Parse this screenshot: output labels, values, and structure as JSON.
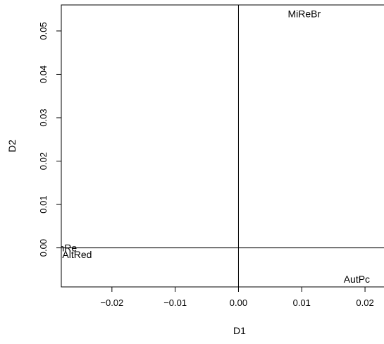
{
  "chart_data": {
    "type": "scatter",
    "xlabel": "D1",
    "ylabel": "D2",
    "xlim": [
      -0.028,
      0.023
    ],
    "ylim": [
      -0.009,
      0.056
    ],
    "xticks": [
      -0.02,
      -0.01,
      0.0,
      0.01,
      0.02
    ],
    "xtick_labels": [
      "−0.02",
      "−0.01",
      "0.00",
      "0.01",
      "0.02"
    ],
    "yticks": [
      0.0,
      0.01,
      0.02,
      0.03,
      0.04,
      0.05
    ],
    "ytick_labels": [
      "0.00",
      "0.01",
      "0.02",
      "0.03",
      "0.04",
      "0.05"
    ],
    "reference_lines": {
      "x": 0,
      "y": 0
    },
    "points": [
      {
        "label": "MiReBr",
        "x": 0.0104,
        "y": 0.054
      },
      {
        "label": "WhRe",
        "x": -0.0277,
        "y": 0.0
      },
      {
        "label": "AltRed",
        "x": -0.0255,
        "y": -0.0015
      },
      {
        "label": "AutPc",
        "x": 0.0187,
        "y": -0.0072
      }
    ]
  }
}
